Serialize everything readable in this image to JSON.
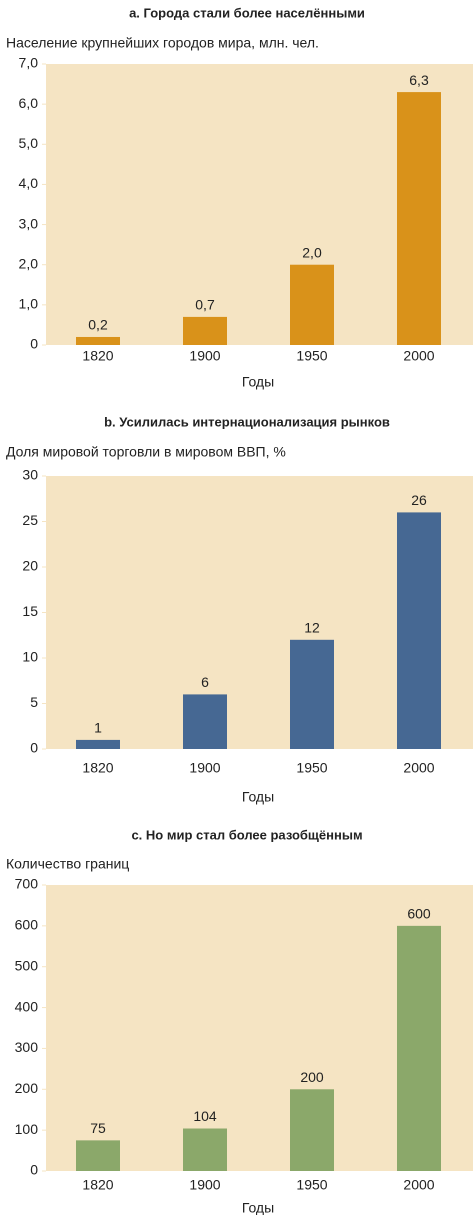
{
  "chart_data": [
    {
      "type": "bar",
      "title": "a. Города стали более населёнными",
      "subtitle": "Население крупнейших городов мира, млн. чел.",
      "x_label": "Годы",
      "categories": [
        "1820",
        "1900",
        "1950",
        "2000"
      ],
      "values": [
        0.2,
        0.7,
        2.0,
        6.3
      ],
      "value_labels": [
        "0,2",
        "0,7",
        "2,0",
        "6,3"
      ],
      "color": "#d9921a",
      "ylim": [
        0,
        7
      ],
      "yticks": [
        {
          "value": 0,
          "label": "0"
        },
        {
          "value": 1,
          "label": "1,0"
        },
        {
          "value": 2,
          "label": "2,0"
        },
        {
          "value": 3,
          "label": "3,0"
        },
        {
          "value": 4,
          "label": "4,0"
        },
        {
          "value": 5,
          "label": "5,0"
        },
        {
          "value": 6,
          "label": "6,0"
        },
        {
          "value": 7,
          "label": "7,0"
        }
      ]
    },
    {
      "type": "bar",
      "title": "b. Усилилась интернационализация рынков",
      "subtitle": "Доля мировой торговли в мировом ВВП, %",
      "x_label": "Годы",
      "categories": [
        "1820",
        "1900",
        "1950",
        "2000"
      ],
      "values": [
        1,
        6,
        12,
        26
      ],
      "color": "#466893",
      "ylim": [
        0,
        30
      ],
      "yticks": [
        0,
        5,
        10,
        15,
        20,
        25,
        30
      ]
    },
    {
      "type": "bar",
      "title": "c. Но мир стал более разобщённым",
      "subtitle": "Количество границ",
      "x_label": "Годы",
      "categories": [
        "1820",
        "1900",
        "1950",
        "2000"
      ],
      "values": [
        75,
        104,
        200,
        600
      ],
      "color": "#8ba86a",
      "ylim": [
        0,
        700
      ],
      "yticks": [
        0,
        100,
        200,
        300,
        400,
        500,
        600,
        700
      ]
    }
  ]
}
